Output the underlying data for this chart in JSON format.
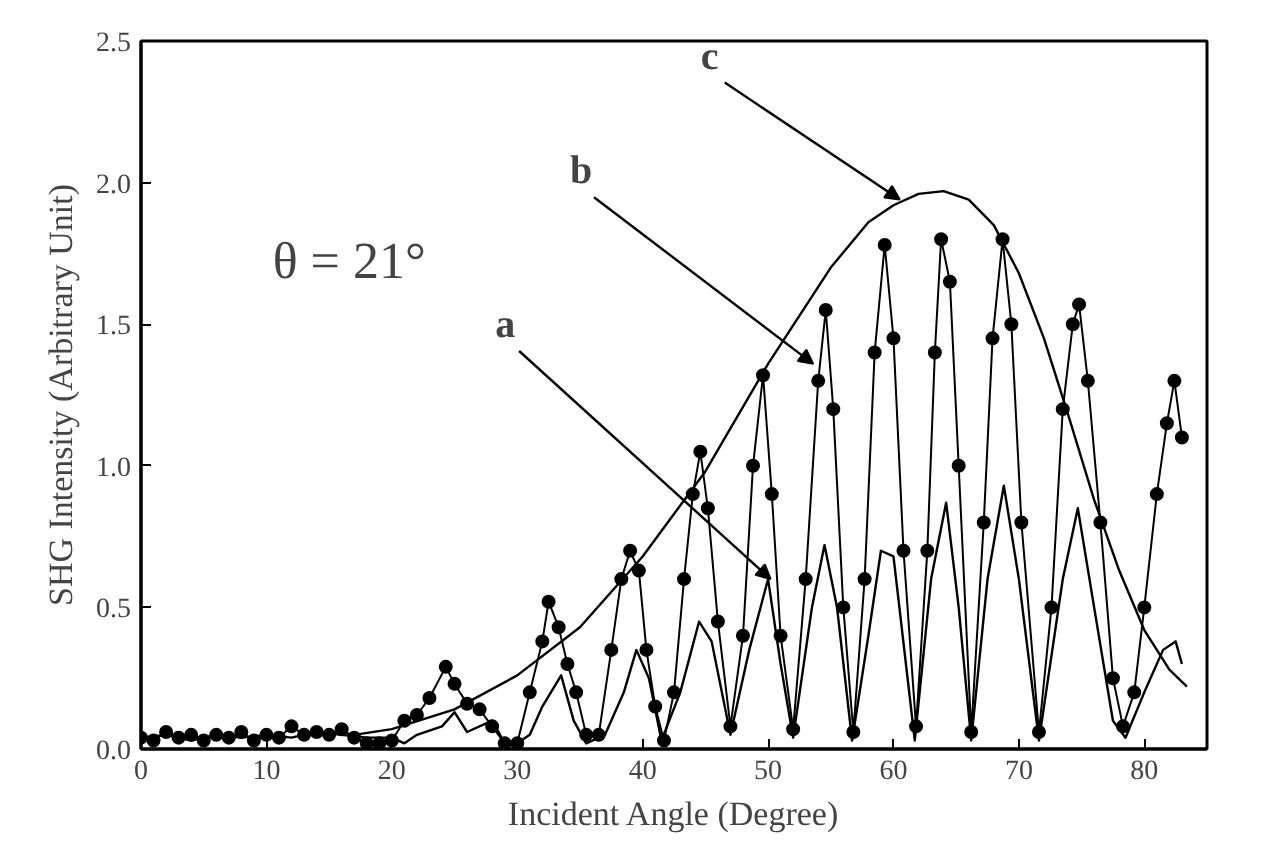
{
  "chart_data": {
    "type": "line",
    "xlabel": "Incident Angle (Degree)",
    "ylabel": "SHG Intensity (Arbitrary Unit)",
    "xlim": [
      0,
      85
    ],
    "ylim": [
      0,
      2.5
    ],
    "xticks": [
      0,
      10,
      20,
      30,
      40,
      50,
      60,
      70,
      80
    ],
    "yticks": [
      {
        "value": 0,
        "label": "0.0"
      },
      {
        "value": 0.5,
        "label": "0.5"
      },
      {
        "value": 1.0,
        "label": "1.0"
      },
      {
        "value": 1.5,
        "label": "1.5"
      },
      {
        "value": 2.0,
        "label": "2.0"
      },
      {
        "value": 2.5,
        "label": "2.5"
      }
    ],
    "grid": false,
    "annotations": [
      "θ = 21°",
      {
        "text": "a",
        "x": 50.2,
        "y": 0.6
      },
      {
        "text": "b",
        "x": 53.6,
        "y": 1.36
      },
      {
        "text": "c",
        "x": 60.5,
        "y": 1.94
      }
    ],
    "series": [
      {
        "color": "#000000",
        "marker": "none",
        "x": [
          0,
          2,
          4,
          6,
          8,
          10,
          12,
          14,
          16,
          18,
          20,
          21,
          22,
          24,
          25,
          26,
          28,
          29,
          30,
          31,
          32,
          33.5,
          34.5,
          35.5,
          37,
          38.5,
          39.5,
          40.5,
          41.5,
          43,
          44.5,
          45.5,
          47,
          48.5,
          50,
          51,
          52,
          53.5,
          54.5,
          55.5,
          56.7,
          58,
          59,
          60,
          61.7,
          63,
          64.2,
          65.2,
          66.2,
          67.5,
          68.8,
          70,
          71.6,
          73.5,
          74.7,
          76,
          77.5,
          78.5,
          80,
          81.5,
          82.5,
          83
        ],
        "values": [
          0.04,
          0.05,
          0.03,
          0.05,
          0.04,
          0.05,
          0.04,
          0.06,
          0.05,
          0.04,
          0.04,
          0.02,
          0.05,
          0.08,
          0.13,
          0.06,
          0.1,
          0.02,
          0.02,
          0.05,
          0.15,
          0.26,
          0.1,
          0.02,
          0.05,
          0.2,
          0.35,
          0.25,
          0.03,
          0.2,
          0.45,
          0.38,
          0.05,
          0.35,
          0.6,
          0.3,
          0.04,
          0.5,
          0.72,
          0.5,
          0.03,
          0.4,
          0.7,
          0.68,
          0.03,
          0.6,
          0.87,
          0.5,
          0.03,
          0.6,
          0.93,
          0.6,
          0.03,
          0.6,
          0.85,
          0.5,
          0.1,
          0.04,
          0.2,
          0.35,
          0.38,
          0.3
        ]
      },
      {
        "color": "#000000",
        "marker": "circle",
        "x": [
          0,
          1,
          2,
          3,
          4,
          5,
          6,
          7,
          8,
          9,
          10,
          11,
          12,
          13,
          14,
          15,
          16,
          17,
          18,
          19,
          20,
          21,
          22,
          23,
          24.3,
          25,
          26,
          27,
          28,
          29,
          30,
          31,
          32,
          32.5,
          33.3,
          34,
          34.7,
          35.5,
          36.5,
          37.5,
          38.3,
          39,
          39.7,
          40.3,
          41,
          41.7,
          42.5,
          43.3,
          44,
          44.6,
          45.2,
          46,
          47,
          48,
          48.8,
          49.6,
          50.3,
          51,
          52,
          53,
          54,
          54.6,
          55.2,
          56,
          56.8,
          57.7,
          58.5,
          59.3,
          60,
          60.8,
          61.8,
          62.7,
          63.3,
          63.8,
          64.5,
          65.2,
          66.2,
          67.2,
          67.9,
          68.7,
          69.4,
          70.2,
          71.6,
          72.6,
          73.5,
          74.3,
          74.8,
          75.5,
          76.5,
          77.5,
          78.3,
          79.2,
          80,
          81,
          81.8,
          82.4,
          83
        ],
        "values": [
          0.04,
          0.03,
          0.06,
          0.04,
          0.05,
          0.03,
          0.05,
          0.04,
          0.06,
          0.03,
          0.05,
          0.04,
          0.08,
          0.05,
          0.06,
          0.05,
          0.07,
          0.04,
          0.02,
          0.02,
          0.03,
          0.1,
          0.12,
          0.18,
          0.29,
          0.23,
          0.16,
          0.14,
          0.08,
          0.02,
          0.02,
          0.2,
          0.38,
          0.52,
          0.43,
          0.3,
          0.2,
          0.05,
          0.05,
          0.35,
          0.6,
          0.7,
          0.63,
          0.35,
          0.15,
          0.03,
          0.2,
          0.6,
          0.9,
          1.05,
          0.85,
          0.45,
          0.08,
          0.4,
          1.0,
          1.32,
          0.9,
          0.4,
          0.07,
          0.6,
          1.3,
          1.55,
          1.2,
          0.5,
          0.06,
          0.6,
          1.4,
          1.78,
          1.45,
          0.7,
          0.08,
          0.7,
          1.4,
          1.8,
          1.65,
          1.0,
          0.06,
          0.8,
          1.45,
          1.8,
          1.5,
          0.8,
          0.06,
          0.5,
          1.2,
          1.5,
          1.57,
          1.3,
          0.8,
          0.25,
          0.08,
          0.2,
          0.5,
          0.9,
          1.15,
          1.3,
          1.1
        ]
      },
      {
        "color": "#000000",
        "marker": "none",
        "x": [
          17,
          20,
          25,
          30,
          35,
          40,
          45,
          50,
          55,
          58,
          60,
          62,
          64,
          66,
          68,
          70,
          72,
          74,
          76,
          78,
          80,
          82,
          83.4
        ],
        "values": [
          0.05,
          0.07,
          0.14,
          0.26,
          0.43,
          0.68,
          0.98,
          1.36,
          1.7,
          1.86,
          1.92,
          1.96,
          1.97,
          1.94,
          1.85,
          1.68,
          1.45,
          1.17,
          0.88,
          0.63,
          0.42,
          0.28,
          0.22
        ]
      }
    ]
  }
}
